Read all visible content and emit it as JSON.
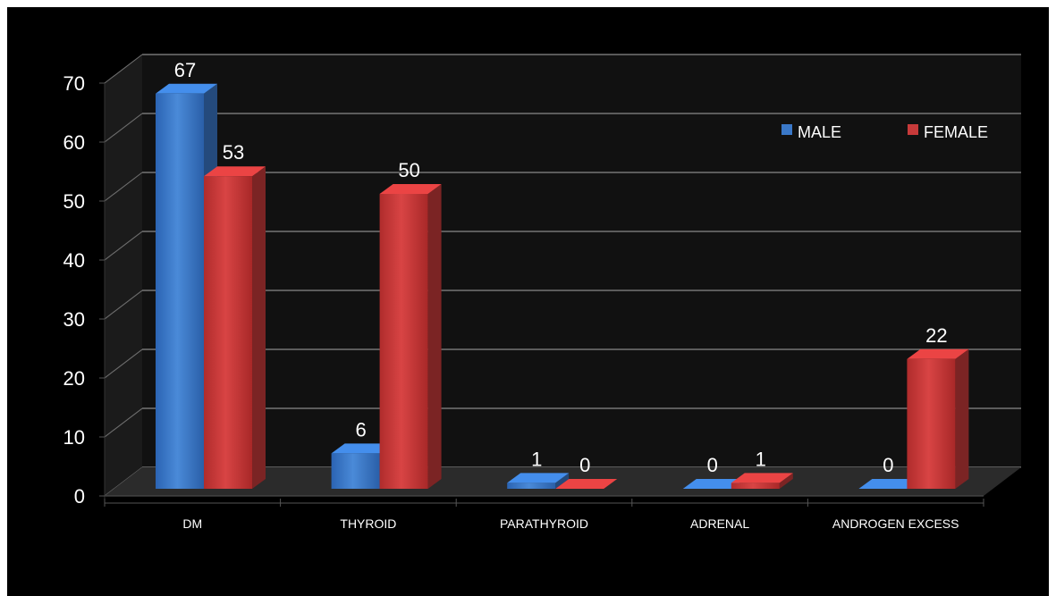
{
  "colors": {
    "slide_background": "#000000",
    "male": "#3a78c8",
    "female": "#c73a3a",
    "text": "#ffffff",
    "axis_ticks": "#000000"
  },
  "chart_data": {
    "type": "bar",
    "categories": [
      "DM",
      "THYROID",
      "PARATHYROID",
      "ADRENAL",
      "ANDROGEN EXCESS"
    ],
    "series": [
      {
        "name": "MALE",
        "values": [
          67,
          6,
          1,
          0,
          0
        ],
        "color": "#3a78c8"
      },
      {
        "name": "FEMALE",
        "values": [
          53,
          50,
          0,
          1,
          22
        ],
        "color": "#c73a3a"
      }
    ],
    "ylim": [
      0,
      70
    ],
    "yticks": [
      0,
      10,
      20,
      30,
      40,
      50,
      60,
      70
    ],
    "ytick_labels": [
      "0",
      "10",
      "20",
      "30",
      "40",
      "50",
      "60",
      "70"
    ],
    "data_labels": [
      [
        "67",
        "6",
        "1",
        "0",
        "0"
      ],
      [
        "53",
        "50",
        "0",
        "1",
        "22"
      ]
    ],
    "style": "3d-clustered-column",
    "grid": true,
    "legend_position": "top-right"
  }
}
